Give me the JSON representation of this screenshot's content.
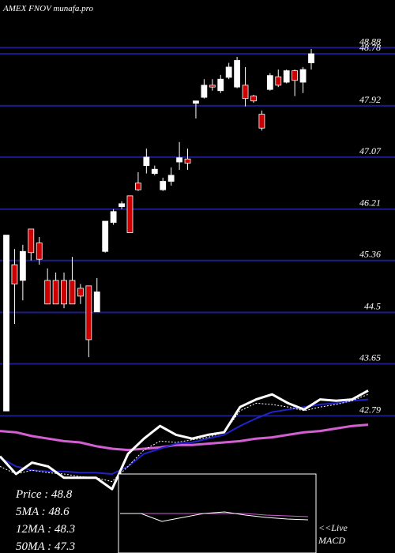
{
  "chart_data": [
    {
      "type": "candlestick",
      "title": "AMEX  FNOV munafa.pro",
      "open": [
        42.87,
        45.29,
        45.03,
        45.88,
        45.65,
        45.03,
        45.03,
        45.03,
        45.03,
        44.9,
        44.94,
        44.51,
        45.51,
        45.99,
        46.25,
        46.43,
        46.64,
        46.93,
        46.8,
        46.53,
        46.67,
        46.99,
        47.04,
        47.96,
        48.06,
        48.26,
        48.17,
        48.39,
        48.23,
        48.26,
        48.08,
        47.78,
        48.19,
        48.4,
        48.31,
        48.5,
        48.31,
        48.63
      ],
      "high": [
        45.78,
        45.55,
        45.62,
        45.88,
        45.75,
        45.23,
        45.16,
        45.16,
        45.42,
        44.97,
        44.94,
        45.07,
        46.01,
        46.21,
        46.34,
        46.43,
        46.82,
        47.21,
        46.93,
        46.73,
        46.9,
        47.32,
        47.21,
        48.0,
        48.36,
        48.36,
        48.43,
        48.63,
        48.73,
        48.56,
        48.1,
        47.84,
        48.46,
        48.52,
        48.52,
        48.52,
        48.56,
        48.86
      ],
      "low": [
        42.87,
        44.31,
        44.7,
        45.36,
        45.29,
        44.64,
        44.64,
        44.57,
        44.64,
        44.64,
        43.76,
        44.51,
        45.49,
        45.95,
        46.21,
        45.82,
        46.51,
        46.8,
        46.77,
        46.51,
        46.6,
        46.86,
        46.86,
        47.71,
        48.04,
        48.17,
        48.13,
        48.36,
        48.21,
        47.91,
        47.97,
        47.51,
        48.17,
        48.23,
        48.29,
        48.08,
        48.13,
        48.52
      ],
      "close": [
        45.78,
        44.97,
        45.51,
        45.49,
        45.38,
        44.64,
        44.64,
        44.64,
        44.64,
        44.77,
        44.05,
        44.84,
        46.01,
        46.17,
        46.3,
        45.82,
        46.53,
        47.07,
        46.87,
        46.67,
        46.77,
        47.06,
        46.97,
        48.0,
        48.26,
        48.23,
        48.36,
        48.56,
        48.67,
        48.04,
        48.0,
        47.55,
        48.42,
        48.26,
        48.5,
        48.34,
        48.52,
        48.78
      ],
      "up_color": "#ffffff",
      "down_color": "#cc0000",
      "ylim": [
        40.52,
        49.67
      ],
      "yticks": [
        48.88,
        48.78,
        47.92,
        47.07,
        46.21,
        45.36,
        44.5,
        43.65,
        42.79
      ],
      "grid": true,
      "grid_color": "#1c1c8c"
    },
    {
      "type": "line",
      "ylim": [
        0,
        100
      ],
      "series": [
        {
          "color": "#d35fd3",
          "width": 3,
          "values": [
            59,
            58,
            55,
            53,
            51,
            50,
            47,
            45,
            44,
            45,
            46,
            48,
            48,
            49,
            50,
            51,
            53,
            54,
            56,
            58,
            59,
            61,
            63,
            64
          ]
        },
        {
          "color": "#2222cc",
          "width": 2,
          "values": [
            38,
            31,
            28,
            27,
            27,
            26,
            26,
            25,
            31,
            41,
            45,
            49,
            50,
            53,
            56,
            63,
            69,
            74,
            76,
            78,
            80,
            81,
            83,
            84
          ]
        },
        {
          "color": "#ffffff",
          "width": 1,
          "dash": true,
          "values": [
            31,
            25,
            28,
            26,
            25,
            23,
            22,
            19,
            31,
            44,
            51,
            50,
            52,
            54,
            58,
            75,
            81,
            80,
            78,
            75,
            78,
            80,
            83,
            88
          ]
        },
        {
          "color": "#ffffff",
          "width": 3,
          "values": [
            39,
            25,
            34,
            31,
            22,
            22,
            22,
            13,
            41,
            53,
            63,
            56,
            53,
            56,
            58,
            78,
            84,
            88,
            81,
            76,
            84,
            83,
            84,
            91
          ]
        }
      ]
    },
    {
      "type": "line",
      "ylim": [
        -10,
        10
      ],
      "series": [
        {
          "color": "#d35fd3",
          "width": 1,
          "values": [
            0,
            0,
            0,
            0,
            0,
            0,
            0,
            -0.4,
            -0.6,
            -0.8
          ]
        },
        {
          "color": "#ffffff",
          "width": 1,
          "values": [
            0,
            0,
            -2,
            -1,
            0,
            0.4,
            -0.4,
            -1,
            -1.4,
            -1.6
          ]
        }
      ]
    }
  ],
  "stats": [
    "Price   : 48.8",
    "5MA  : 48.6",
    "12MA : 48.3",
    "50MA : 47.3"
  ],
  "live": "<<Live",
  "macd_label": "MACD"
}
